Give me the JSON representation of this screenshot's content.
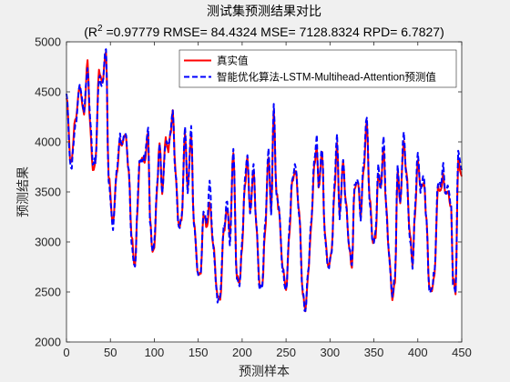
{
  "chart_data": {
    "type": "line",
    "title": "测试集预测结果对比",
    "subtitle": {
      "prefix": "(R",
      "sup": "2",
      "rest": " =0.97779 RMSE= 84.4324 MSE= 7128.8324 RPD= 6.7827)"
    },
    "xlabel": "预测样本",
    "ylabel": "预测结果",
    "xlim": [
      0,
      450
    ],
    "ylim": [
      2000,
      5000
    ],
    "xticks": [
      0,
      50,
      100,
      150,
      200,
      250,
      300,
      350,
      400,
      450
    ],
    "yticks": [
      2000,
      2500,
      3000,
      3500,
      4000,
      4500,
      5000
    ],
    "legend_position": "top-right",
    "series": [
      {
        "name": "真实值",
        "color": "#ff0000",
        "style": "solid",
        "keypoints": [
          [
            0,
            4450
          ],
          [
            5,
            3780
          ],
          [
            10,
            4200
          ],
          [
            15,
            4540
          ],
          [
            20,
            4280
          ],
          [
            24,
            4800
          ],
          [
            27,
            4150
          ],
          [
            30,
            3720
          ],
          [
            33,
            3800
          ],
          [
            37,
            4700
          ],
          [
            41,
            4600
          ],
          [
            45,
            4920
          ],
          [
            48,
            3650
          ],
          [
            53,
            3180
          ],
          [
            57,
            3680
          ],
          [
            61,
            4020
          ],
          [
            63,
            3960
          ],
          [
            67,
            4080
          ],
          [
            71,
            3700
          ],
          [
            74,
            3060
          ],
          [
            78,
            2740
          ],
          [
            81,
            3360
          ],
          [
            83,
            3780
          ],
          [
            86,
            3840
          ],
          [
            89,
            3800
          ],
          [
            93,
            4100
          ],
          [
            95,
            3250
          ],
          [
            98,
            2900
          ],
          [
            100,
            2960
          ],
          [
            103,
            3500
          ],
          [
            106,
            4000
          ],
          [
            109,
            3500
          ],
          [
            113,
            4030
          ],
          [
            116,
            3900
          ],
          [
            118,
            4050
          ],
          [
            121,
            4300
          ],
          [
            124,
            3700
          ],
          [
            128,
            3150
          ],
          [
            131,
            3200
          ],
          [
            135,
            4100
          ],
          [
            138,
            3550
          ],
          [
            142,
            4080
          ],
          [
            145,
            3200
          ],
          [
            150,
            2680
          ],
          [
            153,
            2700
          ],
          [
            156,
            3280
          ],
          [
            160,
            3150
          ],
          [
            163,
            3400
          ],
          [
            167,
            2980
          ],
          [
            172,
            2460
          ],
          [
            175,
            2420
          ],
          [
            179,
            3100
          ],
          [
            183,
            3350
          ],
          [
            186,
            3050
          ],
          [
            190,
            3900
          ],
          [
            194,
            2650
          ],
          [
            197,
            2600
          ],
          [
            200,
            2950
          ],
          [
            203,
            3550
          ],
          [
            206,
            3850
          ],
          [
            209,
            3300
          ],
          [
            213,
            3700
          ],
          [
            216,
            3200
          ],
          [
            220,
            2550
          ],
          [
            223,
            2550
          ],
          [
            226,
            3100
          ],
          [
            230,
            3850
          ],
          [
            233,
            3300
          ],
          [
            236,
            4300
          ],
          [
            239,
            3500
          ],
          [
            242,
            3300
          ],
          [
            246,
            2750
          ],
          [
            250,
            2520
          ],
          [
            254,
            3100
          ],
          [
            257,
            3620
          ],
          [
            261,
            3700
          ],
          [
            265,
            3280
          ],
          [
            269,
            2500
          ],
          [
            272,
            2320
          ],
          [
            275,
            2650
          ],
          [
            279,
            3200
          ],
          [
            282,
            3750
          ],
          [
            285,
            3960
          ],
          [
            287,
            3550
          ],
          [
            291,
            3900
          ],
          [
            294,
            3100
          ],
          [
            298,
            2750
          ],
          [
            302,
            2900
          ],
          [
            305,
            3500
          ],
          [
            308,
            3980
          ],
          [
            311,
            3260
          ],
          [
            315,
            3800
          ],
          [
            318,
            3400
          ],
          [
            322,
            2950
          ],
          [
            325,
            2750
          ],
          [
            328,
            3550
          ],
          [
            332,
            3600
          ],
          [
            335,
            3250
          ],
          [
            338,
            3700
          ],
          [
            342,
            4200
          ],
          [
            345,
            3450
          ],
          [
            349,
            3000
          ],
          [
            352,
            3050
          ],
          [
            355,
            3700
          ],
          [
            358,
            3550
          ],
          [
            361,
            3950
          ],
          [
            364,
            3350
          ],
          [
            367,
            2900
          ],
          [
            371,
            2430
          ],
          [
            374,
            2600
          ],
          [
            377,
            3700
          ],
          [
            380,
            3400
          ],
          [
            384,
            4000
          ],
          [
            387,
            3700
          ],
          [
            391,
            3100
          ],
          [
            394,
            2780
          ],
          [
            397,
            3300
          ],
          [
            400,
            3830
          ],
          [
            403,
            3550
          ],
          [
            407,
            3600
          ],
          [
            410,
            3200
          ],
          [
            413,
            2550
          ],
          [
            416,
            2520
          ],
          [
            419,
            2680
          ],
          [
            423,
            3550
          ],
          [
            426,
            3520
          ],
          [
            429,
            3700
          ],
          [
            431,
            3480
          ],
          [
            434,
            3500
          ],
          [
            438,
            3350
          ],
          [
            440,
            2640
          ],
          [
            443,
            2500
          ],
          [
            446,
            3800
          ],
          [
            450,
            3650
          ]
        ],
        "random_seed": 7,
        "noise": 25
      },
      {
        "name": "智能优化算法-LSTM-Multihead-Attention预测值",
        "color": "#0000ff",
        "style": "dashed",
        "keypoints": [
          [
            0,
            4500
          ],
          [
            5,
            3720
          ],
          [
            10,
            4150
          ],
          [
            15,
            4560
          ],
          [
            20,
            4320
          ],
          [
            24,
            4750
          ],
          [
            27,
            4250
          ],
          [
            30,
            3750
          ],
          [
            33,
            3820
          ],
          [
            37,
            4650
          ],
          [
            41,
            4560
          ],
          [
            45,
            4950
          ],
          [
            48,
            3600
          ],
          [
            53,
            3150
          ],
          [
            57,
            3700
          ],
          [
            61,
            4050
          ],
          [
            63,
            4000
          ],
          [
            67,
            4100
          ],
          [
            71,
            3720
          ],
          [
            74,
            3000
          ],
          [
            78,
            2720
          ],
          [
            81,
            3400
          ],
          [
            83,
            3820
          ],
          [
            86,
            3800
          ],
          [
            89,
            3850
          ],
          [
            93,
            4150
          ],
          [
            95,
            3200
          ],
          [
            98,
            2880
          ],
          [
            100,
            3000
          ],
          [
            103,
            3550
          ],
          [
            106,
            3980
          ],
          [
            109,
            3480
          ],
          [
            113,
            4000
          ],
          [
            116,
            3950
          ],
          [
            118,
            4080
          ],
          [
            121,
            4350
          ],
          [
            124,
            3680
          ],
          [
            128,
            3120
          ],
          [
            131,
            3220
          ],
          [
            135,
            4150
          ],
          [
            138,
            3500
          ],
          [
            142,
            4150
          ],
          [
            145,
            3180
          ],
          [
            150,
            2650
          ],
          [
            153,
            2720
          ],
          [
            156,
            3300
          ],
          [
            160,
            3200
          ],
          [
            163,
            3580
          ],
          [
            167,
            2950
          ],
          [
            172,
            2420
          ],
          [
            175,
            2450
          ],
          [
            179,
            3150
          ],
          [
            183,
            3400
          ],
          [
            186,
            3000
          ],
          [
            190,
            3950
          ],
          [
            194,
            2620
          ],
          [
            197,
            2580
          ],
          [
            200,
            2980
          ],
          [
            203,
            3600
          ],
          [
            206,
            3900
          ],
          [
            209,
            3280
          ],
          [
            213,
            3750
          ],
          [
            216,
            3180
          ],
          [
            220,
            2520
          ],
          [
            223,
            2580
          ],
          [
            226,
            3150
          ],
          [
            230,
            3900
          ],
          [
            233,
            3280
          ],
          [
            236,
            4380
          ],
          [
            239,
            3480
          ],
          [
            242,
            3330
          ],
          [
            246,
            2720
          ],
          [
            250,
            2500
          ],
          [
            254,
            3150
          ],
          [
            257,
            3650
          ],
          [
            261,
            3760
          ],
          [
            265,
            3250
          ],
          [
            269,
            2480
          ],
          [
            272,
            2280
          ],
          [
            275,
            2680
          ],
          [
            279,
            3250
          ],
          [
            282,
            3800
          ],
          [
            285,
            4050
          ],
          [
            287,
            3520
          ],
          [
            291,
            3950
          ],
          [
            294,
            3050
          ],
          [
            298,
            2720
          ],
          [
            302,
            2930
          ],
          [
            305,
            3550
          ],
          [
            308,
            4050
          ],
          [
            311,
            3240
          ],
          [
            315,
            3850
          ],
          [
            318,
            3380
          ],
          [
            322,
            2920
          ],
          [
            325,
            2780
          ],
          [
            328,
            3600
          ],
          [
            332,
            3620
          ],
          [
            335,
            3220
          ],
          [
            338,
            3760
          ],
          [
            342,
            4250
          ],
          [
            345,
            3420
          ],
          [
            349,
            2980
          ],
          [
            352,
            3100
          ],
          [
            355,
            3750
          ],
          [
            358,
            3520
          ],
          [
            361,
            4050
          ],
          [
            364,
            3330
          ],
          [
            367,
            2880
          ],
          [
            371,
            2450
          ],
          [
            374,
            2640
          ],
          [
            377,
            3750
          ],
          [
            380,
            3380
          ],
          [
            384,
            4080
          ],
          [
            387,
            3680
          ],
          [
            391,
            3050
          ],
          [
            394,
            2750
          ],
          [
            397,
            3350
          ],
          [
            400,
            3900
          ],
          [
            403,
            3500
          ],
          [
            407,
            3650
          ],
          [
            410,
            3180
          ],
          [
            413,
            2520
          ],
          [
            416,
            2550
          ],
          [
            419,
            2720
          ],
          [
            423,
            3600
          ],
          [
            426,
            3560
          ],
          [
            429,
            3780
          ],
          [
            431,
            3500
          ],
          [
            434,
            3560
          ],
          [
            438,
            3380
          ],
          [
            440,
            2600
          ],
          [
            443,
            2520
          ],
          [
            446,
            3900
          ],
          [
            450,
            3700
          ]
        ],
        "random_seed": 11,
        "noise": 35
      }
    ]
  }
}
